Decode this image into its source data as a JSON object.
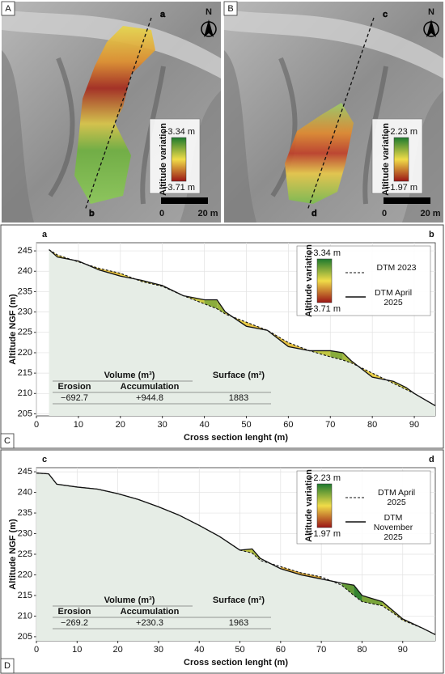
{
  "scale_bar": {
    "zero": "0",
    "length": "20 m"
  },
  "north": "N",
  "maps": [
    {
      "panel": "A"
    },
    {
      "panel": "B"
    }
  ],
  "chart_data": [
    {
      "type": "line",
      "panel": "C",
      "section": [
        "a",
        "b"
      ],
      "x_label": "Cross section lenght (m)",
      "y_label": "Altitude NGF (m)",
      "x": [
        3,
        5,
        10,
        15,
        20,
        25,
        30,
        35,
        40,
        43,
        45,
        50,
        55,
        60,
        65,
        70,
        73,
        75,
        80,
        85,
        88,
        90,
        95
      ],
      "series": [
        {
          "name": "DTM 2023",
          "color": "#111111",
          "linestyle": "dashed",
          "values": [
            245.3,
            244,
            242.3,
            240.7,
            239.5,
            237.5,
            236.3,
            234,
            232,
            230.8,
            229.5,
            227.5,
            225.5,
            222.5,
            220.5,
            219,
            218.2,
            217.5,
            215,
            212.5,
            211,
            210,
            207
          ]
        },
        {
          "name": "DTM April 2025",
          "color": "#111111",
          "linestyle": "solid",
          "values": [
            245.3,
            243.5,
            242.5,
            240.3,
            238.8,
            237.8,
            236.5,
            234,
            233,
            233,
            230,
            226.5,
            225.5,
            221.5,
            220.5,
            220.5,
            220,
            218,
            214,
            213,
            211.5,
            210,
            207
          ]
        }
      ],
      "colorbar": {
        "title": "Altitude variation",
        "max": {
          "value": 3.34,
          "label": "+3.34 m"
        },
        "min": {
          "value": -3.71,
          "label": "−3.71 m"
        }
      },
      "xlim": [
        0,
        95
      ],
      "ylim": [
        204.5,
        247
      ],
      "xticks": [
        0,
        10,
        20,
        30,
        40,
        50,
        60,
        70,
        80,
        90
      ],
      "yticks": [
        205,
        210,
        215,
        220,
        225,
        230,
        235,
        240,
        245
      ],
      "grid": true,
      "table": {
        "columns": [
          "Volume (m³)",
          "Surface (m²)"
        ],
        "subcolumns": [
          "Erosion",
          "Accumulation"
        ],
        "row": [
          "−692.7",
          "+944.8",
          "1883"
        ]
      }
    },
    {
      "type": "line",
      "panel": "D",
      "section": [
        "c",
        "d"
      ],
      "x_label": "Cross section lenght (m)",
      "y_label": "Altitude NGF (m)",
      "x": [
        0,
        3,
        5,
        10,
        15,
        20,
        25,
        30,
        35,
        40,
        45,
        50,
        53,
        55,
        60,
        65,
        70,
        75,
        78,
        80,
        85,
        88,
        90,
        95,
        98
      ],
      "series": [
        {
          "name": "DTM April 2025",
          "color": "#111111",
          "linestyle": "dashed",
          "values": [
            244.7,
            244.5,
            242,
            241.3,
            240.8,
            239.7,
            238.3,
            236.5,
            234.5,
            232,
            229.3,
            226,
            225.3,
            223.5,
            222,
            220.5,
            219.5,
            217.5,
            215,
            213.5,
            212.5,
            210.5,
            209,
            207,
            205.5
          ]
        },
        {
          "name": "DTM November 2025",
          "color": "#111111",
          "linestyle": "solid",
          "values": [
            244.7,
            244.5,
            242,
            241.3,
            240.8,
            239.7,
            238.3,
            236.5,
            234.5,
            232,
            229.3,
            226,
            226.3,
            224,
            221.5,
            220,
            219,
            218,
            217.5,
            215,
            213.5,
            211,
            209.3,
            207,
            205.5
          ]
        }
      ],
      "colorbar": {
        "title": "Altitude variation",
        "max": {
          "value": 2.23,
          "label": "+2.23 m"
        },
        "min": {
          "value": -1.97,
          "label": "−1.97 m"
        }
      },
      "xlim": [
        0,
        98
      ],
      "ylim": [
        204,
        246
      ],
      "xticks": [
        0,
        10,
        20,
        30,
        40,
        50,
        60,
        70,
        80,
        90
      ],
      "yticks": [
        205,
        210,
        215,
        220,
        225,
        230,
        235,
        240,
        245
      ],
      "grid": true,
      "table": {
        "columns": [
          "Volume (m³)",
          "Surface (m²)"
        ],
        "subcolumns": [
          "Erosion",
          "Accumulation"
        ],
        "row": [
          "−269.2",
          "+230.3",
          "1963"
        ]
      }
    }
  ]
}
